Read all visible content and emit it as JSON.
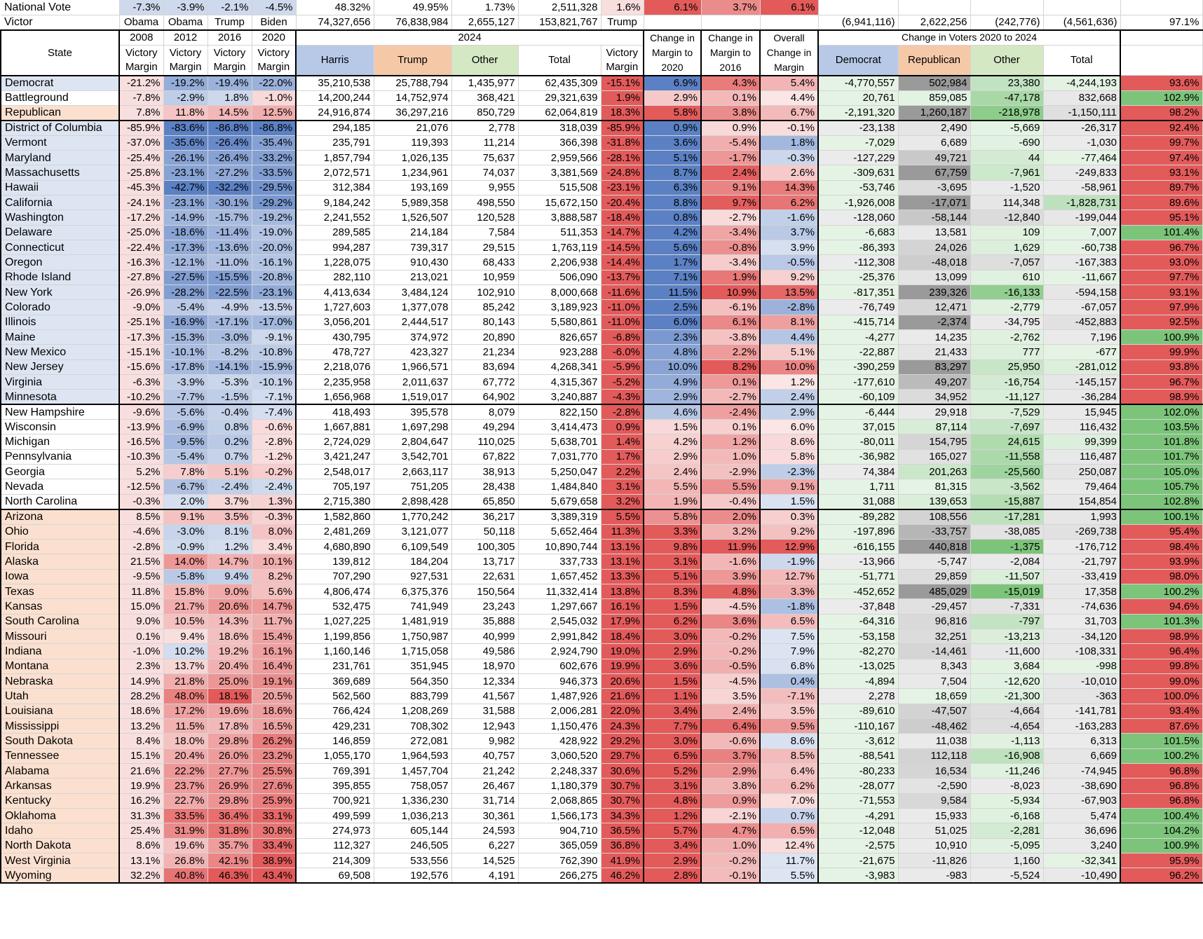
{
  "colors": {
    "dem_band": "#dde5f2",
    "battle_band": "#ffffff",
    "rep_band": "#fbe0cf",
    "harris_header": "#b8c9e8",
    "trump_header": "#f5c9a8",
    "other_header": "#d5e8c4",
    "dem_strong": "#5b80c4",
    "rep_strong": "#e35a5a",
    "gain_green": "#7cc47a",
    "loss_gray": "#9a9a9a"
  },
  "top_rows": {
    "national": {
      "label": "National Vote",
      "m2008": "-7.3%",
      "m2012": "-3.9%",
      "m2016": "-2.1%",
      "m2020": "-4.5%",
      "harris": "48.32%",
      "trump": "49.95%",
      "other": "1.73%",
      "total": "2,511,328",
      "victory": "1.6%",
      "chg2020": "6.1%",
      "chg2016": "3.7%",
      "overall": "6.1%"
    },
    "victor": {
      "label": "Victor",
      "w2008": "Obama",
      "w2012": "Obama",
      "w2016": "Trump",
      "w2020": "Biden",
      "harris": "74,327,656",
      "trump": "76,838,984",
      "other": "2,655,127",
      "total": "153,821,767",
      "victory": "Trump",
      "dem": "(6,941,116)",
      "rep": "2,622,256",
      "oth": "(242,776)",
      "tot": "(4,561,636)",
      "pct": "97.1%"
    }
  },
  "header": {
    "state": "State",
    "years": [
      "2008",
      "2012",
      "2016",
      "2020"
    ],
    "victory_margin": "Victory Margin",
    "winners": [
      "Obama",
      "Obama",
      "Trump",
      "Biden"
    ],
    "y2024": "2024",
    "harris": "Harris",
    "trump": "Trump",
    "other": "Other",
    "total": "Total",
    "victory": "Victory Margin",
    "chg2020": "Change in Margin to 2020",
    "chg2016": "Change in Margin to 2016",
    "overall": "Overall Change in Margin",
    "change_voters": "Change in Voters 2020 to 2024",
    "dem": "Democrat",
    "rep": "Republican",
    "oth": "Other",
    "tot": "Total"
  },
  "groups": [
    {
      "name": "Democrat",
      "cls": "d",
      "m": [
        "-21.2%",
        "-19.2%",
        "-19.4%",
        "-22.0%"
      ],
      "h": "35,210,538",
      "t": "25,788,794",
      "o": "1,435,977",
      "tot": "62,435,309",
      "v": "-15.1%",
      "c20": "6.9%",
      "c16": "4.3%",
      "oc": "5.4%",
      "dd": "-4,770,557",
      "dr": "502,984",
      "do": "23,380",
      "dt": "-4,244,193",
      "p": "93.6%"
    },
    {
      "name": "Battleground",
      "cls": "b",
      "m": [
        "-7.8%",
        "-2.9%",
        "1.8%",
        "-1.0%"
      ],
      "h": "14,200,244",
      "t": "14,752,974",
      "o": "368,421",
      "tot": "29,321,639",
      "v": "1.9%",
      "c20": "2.9%",
      "c16": "0.1%",
      "oc": "4.4%",
      "dd": "20,761",
      "dr": "859,085",
      "do": "-47,178",
      "dt": "832,668",
      "p": "102.9%"
    },
    {
      "name": "Republican",
      "cls": "r",
      "m": [
        "7.8%",
        "11.8%",
        "14.5%",
        "12.5%"
      ],
      "h": "24,916,874",
      "t": "36,297,216",
      "o": "850,729",
      "tot": "62,064,819",
      "v": "18.3%",
      "c20": "5.8%",
      "c16": "3.8%",
      "oc": "6.7%",
      "dd": "-2,191,320",
      "dr": "1,260,187",
      "do": "-218,978",
      "dt": "-1,150,111",
      "p": "98.2%"
    }
  ],
  "states": [
    [
      "District of Columbia",
      "d",
      "-85.9%",
      "-83.6%",
      "-86.8%",
      "-86.8%",
      "294,185",
      "21,076",
      "2,778",
      "318,039",
      "-85.9%",
      "0.9%",
      "0.9%",
      "-0.1%",
      "-23,138",
      "2,490",
      "-5,669",
      "-26,317",
      "92.4%"
    ],
    [
      "Vermont",
      "d",
      "-37.0%",
      "-35.6%",
      "-26.4%",
      "-35.4%",
      "235,791",
      "119,393",
      "11,214",
      "366,398",
      "-31.8%",
      "3.6%",
      "-5.4%",
      "1.8%",
      "-7,029",
      "6,689",
      "-690",
      "-1,030",
      "99.7%"
    ],
    [
      "Maryland",
      "d",
      "-25.4%",
      "-26.1%",
      "-26.4%",
      "-33.2%",
      "1,857,794",
      "1,026,135",
      "75,637",
      "2,959,566",
      "-28.1%",
      "5.1%",
      "-1.7%",
      "-0.3%",
      "-127,229",
      "49,721",
      "44",
      "-77,464",
      "97.4%"
    ],
    [
      "Massachusetts",
      "d",
      "-25.8%",
      "-23.1%",
      "-27.2%",
      "-33.5%",
      "2,072,571",
      "1,234,961",
      "74,037",
      "3,381,569",
      "-24.8%",
      "8.7%",
      "2.4%",
      "2.6%",
      "-309,631",
      "67,759",
      "-7,961",
      "-249,833",
      "93.1%"
    ],
    [
      "Hawaii",
      "d",
      "-45.3%",
      "-42.7%",
      "-32.2%",
      "-29.5%",
      "312,384",
      "193,169",
      "9,955",
      "515,508",
      "-23.1%",
      "6.3%",
      "9.1%",
      "14.3%",
      "-53,746",
      "-3,695",
      "-1,520",
      "-58,961",
      "89.7%"
    ],
    [
      "California",
      "d",
      "-24.1%",
      "-23.1%",
      "-30.1%",
      "-29.2%",
      "9,184,242",
      "5,989,358",
      "498,550",
      "15,672,150",
      "-20.4%",
      "8.8%",
      "9.7%",
      "6.2%",
      "-1,926,008",
      "-17,071",
      "114,348",
      "-1,828,731",
      "89.6%"
    ],
    [
      "Washington",
      "d",
      "-17.2%",
      "-14.9%",
      "-15.7%",
      "-19.2%",
      "2,241,552",
      "1,526,507",
      "120,528",
      "3,888,587",
      "-18.4%",
      "0.8%",
      "-2.7%",
      "-1.6%",
      "-128,060",
      "-58,144",
      "-12,840",
      "-199,044",
      "95.1%"
    ],
    [
      "Delaware",
      "d",
      "-25.0%",
      "-18.6%",
      "-11.4%",
      "-19.0%",
      "289,585",
      "214,184",
      "7,584",
      "511,353",
      "-14.7%",
      "4.2%",
      "-3.4%",
      "3.7%",
      "-6,683",
      "13,581",
      "109",
      "7,007",
      "101.4%"
    ],
    [
      "Connecticut",
      "d",
      "-22.4%",
      "-17.3%",
      "-13.6%",
      "-20.0%",
      "994,287",
      "739,317",
      "29,515",
      "1,763,119",
      "-14.5%",
      "5.6%",
      "-0.8%",
      "3.9%",
      "-86,393",
      "24,026",
      "1,629",
      "-60,738",
      "96.7%"
    ],
    [
      "Oregon",
      "d",
      "-16.3%",
      "-12.1%",
      "-11.0%",
      "-16.1%",
      "1,228,075",
      "910,430",
      "68,433",
      "2,206,938",
      "-14.4%",
      "1.7%",
      "-3.4%",
      "-0.5%",
      "-112,308",
      "-48,018",
      "-7,057",
      "-167,383",
      "93.0%"
    ],
    [
      "Rhode Island",
      "d",
      "-27.8%",
      "-27.5%",
      "-15.5%",
      "-20.8%",
      "282,110",
      "213,021",
      "10,959",
      "506,090",
      "-13.7%",
      "7.1%",
      "1.9%",
      "9.2%",
      "-25,376",
      "13,099",
      "610",
      "-11,667",
      "97.7%"
    ],
    [
      "New York",
      "d",
      "-26.9%",
      "-28.2%",
      "-22.5%",
      "-23.1%",
      "4,413,634",
      "3,484,124",
      "102,910",
      "8,000,668",
      "-11.6%",
      "11.5%",
      "10.9%",
      "13.5%",
      "-817,351",
      "239,326",
      "-16,133",
      "-594,158",
      "93.1%"
    ],
    [
      "Colorado",
      "d",
      "-9.0%",
      "-5.4%",
      "-4.9%",
      "-13.5%",
      "1,727,603",
      "1,377,078",
      "85,242",
      "3,189,923",
      "-11.0%",
      "2.5%",
      "-6.1%",
      "-2.8%",
      "-76,749",
      "12,471",
      "-2,779",
      "-67,057",
      "97.9%"
    ],
    [
      "Illinois",
      "d",
      "-25.1%",
      "-16.9%",
      "-17.1%",
      "-17.0%",
      "3,056,201",
      "2,444,517",
      "80,143",
      "5,580,861",
      "-11.0%",
      "6.0%",
      "6.1%",
      "8.1%",
      "-415,714",
      "-2,374",
      "-34,795",
      "-452,883",
      "92.5%"
    ],
    [
      "Maine",
      "d",
      "-17.3%",
      "-15.3%",
      "-3.0%",
      "-9.1%",
      "430,795",
      "374,972",
      "20,890",
      "826,657",
      "-6.8%",
      "2.3%",
      "-3.8%",
      "4.4%",
      "-4,277",
      "14,235",
      "-2,762",
      "7,196",
      "100.9%"
    ],
    [
      "New Mexico",
      "d",
      "-15.1%",
      "-10.1%",
      "-8.2%",
      "-10.8%",
      "478,727",
      "423,327",
      "21,234",
      "923,288",
      "-6.0%",
      "4.8%",
      "2.2%",
      "5.1%",
      "-22,887",
      "21,433",
      "777",
      "-677",
      "99.9%"
    ],
    [
      "New Jersey",
      "d",
      "-15.6%",
      "-17.8%",
      "-14.1%",
      "-15.9%",
      "2,218,076",
      "1,966,571",
      "83,694",
      "4,268,341",
      "-5.9%",
      "10.0%",
      "8.2%",
      "10.0%",
      "-390,259",
      "83,297",
      "25,950",
      "-281,012",
      "93.8%"
    ],
    [
      "Virginia",
      "d",
      "-6.3%",
      "-3.9%",
      "-5.3%",
      "-10.1%",
      "2,235,958",
      "2,011,637",
      "67,772",
      "4,315,367",
      "-5.2%",
      "4.9%",
      "0.1%",
      "1.2%",
      "-177,610",
      "49,207",
      "-16,754",
      "-145,157",
      "96.7%"
    ],
    [
      "Minnesota",
      "d",
      "-10.2%",
      "-7.7%",
      "-1.5%",
      "-7.1%",
      "1,656,968",
      "1,519,017",
      "64,902",
      "3,240,887",
      "-4.3%",
      "2.9%",
      "-2.7%",
      "2.4%",
      "-60,109",
      "34,952",
      "-11,127",
      "-36,284",
      "98.9%"
    ],
    [
      "New Hampshire",
      "b",
      "-9.6%",
      "-5.6%",
      "-0.4%",
      "-7.4%",
      "418,493",
      "395,578",
      "8,079",
      "822,150",
      "-2.8%",
      "4.6%",
      "-2.4%",
      "2.9%",
      "-6,444",
      "29,918",
      "-7,529",
      "15,945",
      "102.0%"
    ],
    [
      "Wisconsin",
      "b",
      "-13.9%",
      "-6.9%",
      "0.8%",
      "-0.6%",
      "1,667,881",
      "1,697,298",
      "49,294",
      "3,414,473",
      "0.9%",
      "1.5%",
      "0.1%",
      "6.0%",
      "37,015",
      "87,114",
      "-7,697",
      "116,432",
      "103.5%"
    ],
    [
      "Michigan",
      "b",
      "-16.5%",
      "-9.5%",
      "0.2%",
      "-2.8%",
      "2,724,029",
      "2,804,647",
      "110,025",
      "5,638,701",
      "1.4%",
      "4.2%",
      "1.2%",
      "8.6%",
      "-80,011",
      "154,795",
      "24,615",
      "99,399",
      "101.8%"
    ],
    [
      "Pennsylvania",
      "b",
      "-10.3%",
      "-5.4%",
      "0.7%",
      "-1.2%",
      "3,421,247",
      "3,542,701",
      "67,822",
      "7,031,770",
      "1.7%",
      "2.9%",
      "1.0%",
      "5.8%",
      "-36,982",
      "165,027",
      "-11,558",
      "116,487",
      "101.7%"
    ],
    [
      "Georgia",
      "b",
      "5.2%",
      "7.8%",
      "5.1%",
      "-0.2%",
      "2,548,017",
      "2,663,117",
      "38,913",
      "5,250,047",
      "2.2%",
      "2.4%",
      "-2.9%",
      "-2.3%",
      "74,384",
      "201,263",
      "-25,560",
      "250,087",
      "105.0%"
    ],
    [
      "Nevada",
      "b",
      "-12.5%",
      "-6.7%",
      "-2.4%",
      "-2.4%",
      "705,197",
      "751,205",
      "28,438",
      "1,484,840",
      "3.1%",
      "5.5%",
      "5.5%",
      "9.1%",
      "1,711",
      "81,315",
      "-3,562",
      "79,464",
      "105.7%"
    ],
    [
      "North Carolina",
      "b",
      "-0.3%",
      "2.0%",
      "3.7%",
      "1.3%",
      "2,715,380",
      "2,898,428",
      "65,850",
      "5,679,658",
      "3.2%",
      "1.9%",
      "-0.4%",
      "1.5%",
      "31,088",
      "139,653",
      "-15,887",
      "154,854",
      "102.8%"
    ],
    [
      "Arizona",
      "r",
      "8.5%",
      "9.1%",
      "3.5%",
      "-0.3%",
      "1,582,860",
      "1,770,242",
      "36,217",
      "3,389,319",
      "5.5%",
      "5.8%",
      "2.0%",
      "0.3%",
      "-89,282",
      "108,556",
      "-17,281",
      "1,993",
      "100.1%"
    ],
    [
      "Ohio",
      "r",
      "-4.6%",
      "-3.0%",
      "8.1%",
      "8.0%",
      "2,481,269",
      "3,121,077",
      "50,118",
      "5,652,464",
      "11.3%",
      "3.3%",
      "3.2%",
      "9.2%",
      "-197,896",
      "-33,757",
      "-38,085",
      "-269,738",
      "95.4%"
    ],
    [
      "Florida",
      "r",
      "-2.8%",
      "-0.9%",
      "1.2%",
      "3.4%",
      "4,680,890",
      "6,109,549",
      "100,305",
      "10,890,744",
      "13.1%",
      "9.8%",
      "11.9%",
      "12.9%",
      "-616,155",
      "440,818",
      "-1,375",
      "-176,712",
      "98.4%"
    ],
    [
      "Alaska",
      "r",
      "21.5%",
      "14.0%",
      "14.7%",
      "10.1%",
      "139,812",
      "184,204",
      "13,717",
      "337,733",
      "13.1%",
      "3.1%",
      "-1.6%",
      "-1.9%",
      "-13,966",
      "-5,747",
      "-2,084",
      "-21,797",
      "93.9%"
    ],
    [
      "Iowa",
      "r",
      "-9.5%",
      "-5.8%",
      "9.4%",
      "8.2%",
      "707,290",
      "927,531",
      "22,631",
      "1,657,452",
      "13.3%",
      "5.1%",
      "3.9%",
      "12.7%",
      "-51,771",
      "29,859",
      "-11,507",
      "-33,419",
      "98.0%"
    ],
    [
      "Texas",
      "r",
      "11.8%",
      "15.8%",
      "9.0%",
      "5.6%",
      "4,806,474",
      "6,375,376",
      "150,564",
      "11,332,414",
      "13.8%",
      "8.3%",
      "4.8%",
      "3.3%",
      "-452,652",
      "485,029",
      "-15,019",
      "17,358",
      "100.2%"
    ],
    [
      "Kansas",
      "r",
      "15.0%",
      "21.7%",
      "20.6%",
      "14.7%",
      "532,475",
      "741,949",
      "23,243",
      "1,297,667",
      "16.1%",
      "1.5%",
      "-4.5%",
      "-1.8%",
      "-37,848",
      "-29,457",
      "-7,331",
      "-74,636",
      "94.6%"
    ],
    [
      "South Carolina",
      "r",
      "9.0%",
      "10.5%",
      "14.3%",
      "11.7%",
      "1,027,225",
      "1,481,919",
      "35,888",
      "2,545,032",
      "17.9%",
      "6.2%",
      "3.6%",
      "6.5%",
      "-64,316",
      "96,816",
      "-797",
      "31,703",
      "101.3%"
    ],
    [
      "Missouri",
      "r",
      "0.1%",
      "9.4%",
      "18.6%",
      "15.4%",
      "1,199,856",
      "1,750,987",
      "40,999",
      "2,991,842",
      "18.4%",
      "3.0%",
      "-0.2%",
      "7.5%",
      "-53,158",
      "32,251",
      "-13,213",
      "-34,120",
      "98.9%"
    ],
    [
      "Indiana",
      "r",
      "-1.0%",
      "10.2%",
      "19.2%",
      "16.1%",
      "1,160,146",
      "1,715,058",
      "49,586",
      "2,924,790",
      "19.0%",
      "2.9%",
      "-0.2%",
      "7.9%",
      "-82,270",
      "-14,461",
      "-11,600",
      "-108,331",
      "96.4%"
    ],
    [
      "Montana",
      "r",
      "2.3%",
      "13.7%",
      "20.4%",
      "16.4%",
      "231,761",
      "351,945",
      "18,970",
      "602,676",
      "19.9%",
      "3.6%",
      "-0.5%",
      "6.8%",
      "-13,025",
      "8,343",
      "3,684",
      "-998",
      "99.8%"
    ],
    [
      "Nebraska",
      "r",
      "14.9%",
      "21.8%",
      "25.0%",
      "19.1%",
      "369,689",
      "564,350",
      "12,334",
      "946,373",
      "20.6%",
      "1.5%",
      "-4.5%",
      "0.4%",
      "-4,894",
      "7,504",
      "-12,620",
      "-10,010",
      "99.0%"
    ],
    [
      "Utah",
      "r",
      "28.2%",
      "48.0%",
      "18.1%",
      "20.5%",
      "562,560",
      "883,799",
      "41,567",
      "1,487,926",
      "21.6%",
      "1.1%",
      "3.5%",
      "-7.1%",
      "2,278",
      "18,659",
      "-21,300",
      "-363",
      "100.0%"
    ],
    [
      "Louisiana",
      "r",
      "18.6%",
      "17.2%",
      "19.6%",
      "18.6%",
      "766,424",
      "1,208,269",
      "31,588",
      "2,006,281",
      "22.0%",
      "3.4%",
      "2.4%",
      "3.5%",
      "-89,610",
      "-47,507",
      "-4,664",
      "-141,781",
      "93.4%"
    ],
    [
      "Mississippi",
      "r",
      "13.2%",
      "11.5%",
      "17.8%",
      "16.5%",
      "429,231",
      "708,302",
      "12,943",
      "1,150,476",
      "24.3%",
      "7.7%",
      "6.4%",
      "9.5%",
      "-110,167",
      "-48,462",
      "-4,654",
      "-163,283",
      "87.6%"
    ],
    [
      "South Dakota",
      "r",
      "8.4%",
      "18.0%",
      "29.8%",
      "26.2%",
      "146,859",
      "272,081",
      "9,982",
      "428,922",
      "29.2%",
      "3.0%",
      "-0.6%",
      "8.6%",
      "-3,612",
      "11,038",
      "-1,113",
      "6,313",
      "101.5%"
    ],
    [
      "Tennessee",
      "r",
      "15.1%",
      "20.4%",
      "26.0%",
      "23.2%",
      "1,055,170",
      "1,964,593",
      "40,757",
      "3,060,520",
      "29.7%",
      "6.5%",
      "3.7%",
      "8.5%",
      "-88,541",
      "112,118",
      "-16,908",
      "6,669",
      "100.2%"
    ],
    [
      "Alabama",
      "r",
      "21.6%",
      "22.2%",
      "27.7%",
      "25.5%",
      "769,391",
      "1,457,704",
      "21,242",
      "2,248,337",
      "30.6%",
      "5.2%",
      "2.9%",
      "6.4%",
      "-80,233",
      "16,534",
      "-11,246",
      "-74,945",
      "96.8%"
    ],
    [
      "Arkansas",
      "r",
      "19.9%",
      "23.7%",
      "26.9%",
      "27.6%",
      "395,855",
      "758,057",
      "26,467",
      "1,180,379",
      "30.7%",
      "3.1%",
      "3.8%",
      "6.2%",
      "-28,077",
      "-2,590",
      "-8,023",
      "-38,690",
      "96.8%"
    ],
    [
      "Kentucky",
      "r",
      "16.2%",
      "22.7%",
      "29.8%",
      "25.9%",
      "700,921",
      "1,336,230",
      "31,714",
      "2,068,865",
      "30.7%",
      "4.8%",
      "0.9%",
      "7.0%",
      "-71,553",
      "9,584",
      "-5,934",
      "-67,903",
      "96.8%"
    ],
    [
      "Oklahoma",
      "r",
      "31.3%",
      "33.5%",
      "36.4%",
      "33.1%",
      "499,599",
      "1,036,213",
      "30,361",
      "1,566,173",
      "34.3%",
      "1.2%",
      "-2.1%",
      "0.7%",
      "-4,291",
      "15,933",
      "-6,168",
      "5,474",
      "100.4%"
    ],
    [
      "Idaho",
      "r",
      "25.4%",
      "31.9%",
      "31.8%",
      "30.8%",
      "274,973",
      "605,144",
      "24,593",
      "904,710",
      "36.5%",
      "5.7%",
      "4.7%",
      "6.5%",
      "-12,048",
      "51,025",
      "-2,281",
      "36,696",
      "104.2%"
    ],
    [
      "North Dakota",
      "r",
      "8.6%",
      "19.6%",
      "35.7%",
      "33.4%",
      "112,327",
      "246,505",
      "6,227",
      "365,059",
      "36.8%",
      "3.4%",
      "1.0%",
      "12.4%",
      "-2,575",
      "10,910",
      "-5,095",
      "3,240",
      "100.9%"
    ],
    [
      "West Virginia",
      "r",
      "13.1%",
      "26.8%",
      "42.1%",
      "38.9%",
      "214,309",
      "533,556",
      "14,525",
      "762,390",
      "41.9%",
      "2.9%",
      "-0.2%",
      "11.7%",
      "-21,675",
      "-11,826",
      "1,160",
      "-32,341",
      "95.9%"
    ],
    [
      "Wyoming",
      "r",
      "32.2%",
      "40.8%",
      "46.3%",
      "43.4%",
      "69,508",
      "192,576",
      "4,191",
      "266,275",
      "46.2%",
      "2.8%",
      "-0.1%",
      "5.5%",
      "-3,983",
      "-983",
      "-5,524",
      "-10,490",
      "96.2%"
    ]
  ]
}
